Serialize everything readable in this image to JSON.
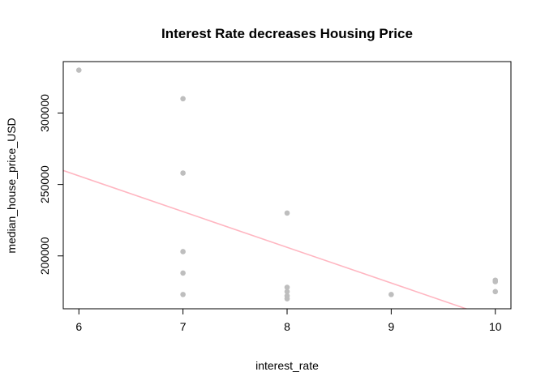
{
  "chart_data": {
    "type": "scatter",
    "title": "Interest Rate decreases Housing Price",
    "xlabel": "interest_rate",
    "ylabel": "median_house_price_USD",
    "xlim": [
      5.85,
      10.15
    ],
    "ylim": [
      163000,
      336000
    ],
    "x_ticks": [
      6,
      7,
      8,
      9,
      10
    ],
    "y_ticks": [
      200000,
      250000,
      300000
    ],
    "grid": false,
    "point_color": "#bebebe",
    "line_color": "#ffb6c1",
    "points": [
      {
        "x": 6,
        "y": 330000
      },
      {
        "x": 7,
        "y": 310000
      },
      {
        "x": 7,
        "y": 258000
      },
      {
        "x": 7,
        "y": 203000
      },
      {
        "x": 7,
        "y": 188000
      },
      {
        "x": 7,
        "y": 173000
      },
      {
        "x": 8,
        "y": 230000
      },
      {
        "x": 8,
        "y": 178000
      },
      {
        "x": 8,
        "y": 175000
      },
      {
        "x": 8,
        "y": 172000
      },
      {
        "x": 8,
        "y": 170000
      },
      {
        "x": 9,
        "y": 173000
      },
      {
        "x": 10,
        "y": 183000
      },
      {
        "x": 10,
        "y": 182000
      },
      {
        "x": 10,
        "y": 175000
      }
    ],
    "regression_line": {
      "intercept": 406000,
      "slope": -25000
    }
  }
}
